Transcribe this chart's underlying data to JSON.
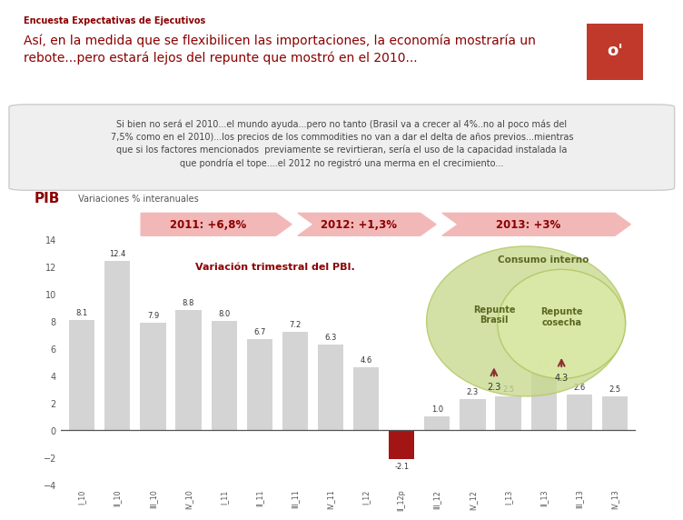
{
  "title_small": "Encuesta Expectativas de Ejecutivos",
  "title_main": "Así, en la medida que se flexibilicen las importaciones, la economía mostraría un\nrebote...pero estará lejos del repunte que mostró en el 2010...",
  "text_box_line1": "Si bien no será el 2010...el mundo ayuda...pero no tanto (Brasil va a crecer al 4%..no al poco más del",
  "text_box_line2": "7,5% como en el 2010)...los precios de los commodities no van a dar el delta de años previos...mientras",
  "text_box_line3": "que si los factores mencionados  previamente se revirtieran, sería el uso de la capacidad instalada la",
  "text_box_line4": "que pondría el tope....el 2012 no registró una merma en el crecimiento...",
  "pib_label": "PIB",
  "pib_sublabel": " Variaciones % interanuales",
  "arrow_labels": [
    "2011: +6,8%",
    "2012: +1,3%",
    "2013: +3%"
  ],
  "bar_labels": [
    "I_10",
    "II_10",
    "III_10",
    "IV_10",
    "I_11",
    "II_11",
    "III_11",
    "IV_11",
    "I_12",
    "II_12p",
    "III_12",
    "IV_12",
    "I_13",
    "II_13",
    "III_13",
    "IV_13"
  ],
  "bar_values": [
    8.1,
    12.4,
    7.9,
    8.8,
    8.0,
    6.7,
    7.2,
    6.3,
    4.6,
    -2.1,
    1.0,
    2.3,
    2.5,
    4.3,
    2.6,
    2.5
  ],
  "bar_colors_default": "#d4d4d4",
  "bar_color_special": "#a31515",
  "special_bar_index": 9,
  "var_label": "Variación trimestral del PBI.",
  "ylim": [
    -4,
    14
  ],
  "yticks": [
    -4,
    -2,
    0,
    2,
    4,
    6,
    8,
    10,
    12,
    14
  ],
  "bg_color": "#ffffff",
  "dark_red": "#8B0000",
  "arrow_fill": "#f2b8b8",
  "arrow_text_color": "#8B0000",
  "consumo_interno_text": "Consumo interno",
  "repunte_brasil_text": "Repunte\nBrasil",
  "repunte_cosecha_text": "Repunte\ncosecha",
  "logo_color": "#c0392b",
  "text_box_bg": "#efefef",
  "text_box_edge": "#cccccc"
}
